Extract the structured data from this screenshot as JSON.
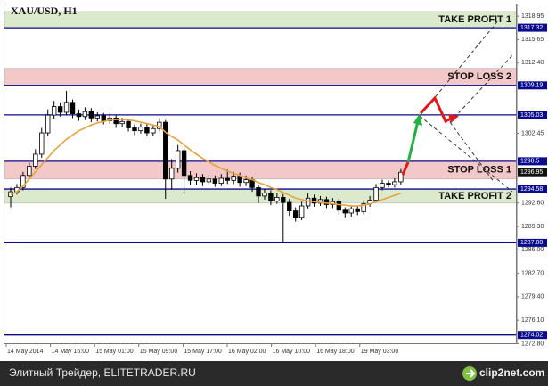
{
  "chart_data": {
    "type": "candlestick",
    "title": "XAU/USD, H1",
    "open": [
      1293.5,
      1294.2,
      1294.8,
      1296.5,
      1297.8,
      1299.5,
      1302.5,
      1305.0,
      1306.2,
      1305.4,
      1306.8,
      1305.2,
      1304.8,
      1305.5,
      1304.6,
      1304.9,
      1304.2,
      1304.6,
      1303.8,
      1304.1,
      1303.2,
      1302.8,
      1303.3,
      1302.5,
      1303.1,
      1304.0,
      1296.0,
      1297.5,
      1300.0,
      1296.5,
      1295.8,
      1296.2,
      1295.6,
      1296.0,
      1295.4,
      1296.1,
      1295.8,
      1296.4,
      1295.5,
      1295.9,
      1294.8,
      1293.6,
      1294.0,
      1292.9,
      1293.4,
      1292.7,
      1291.5,
      1290.6,
      1292.2,
      1293.3,
      1292.6,
      1293.1,
      1292.4,
      1292.8,
      1291.6,
      1291.2,
      1291.8,
      1291.4,
      1292.5,
      1293.0,
      1294.8,
      1295.4,
      1295.2,
      1295.6
    ],
    "high": [
      1294.8,
      1295.3,
      1297.0,
      1298.3,
      1300.2,
      1303.2,
      1305.8,
      1307.0,
      1306.8,
      1308.4,
      1307.2,
      1305.8,
      1306.1,
      1306.0,
      1305.4,
      1305.3,
      1305.2,
      1305.0,
      1304.6,
      1304.5,
      1303.7,
      1303.8,
      1303.7,
      1303.6,
      1304.6,
      1304.3,
      1298.8,
      1300.8,
      1300.4,
      1297.1,
      1296.8,
      1296.7,
      1296.6,
      1296.5,
      1296.7,
      1297.3,
      1297.0,
      1296.9,
      1296.5,
      1296.3,
      1295.2,
      1294.6,
      1294.4,
      1294.0,
      1293.9,
      1293.2,
      1292.0,
      1292.8,
      1294.0,
      1293.8,
      1293.6,
      1293.5,
      1293.3,
      1293.2,
      1292.0,
      1292.3,
      1292.2,
      1293.0,
      1293.6,
      1295.3,
      1295.9,
      1295.8,
      1296.1,
      1297.4
    ],
    "low": [
      1292.0,
      1293.8,
      1294.4,
      1296.0,
      1297.4,
      1299.0,
      1302.0,
      1304.5,
      1304.8,
      1305.0,
      1304.6,
      1304.2,
      1304.3,
      1304.0,
      1304.1,
      1303.7,
      1303.8,
      1303.2,
      1303.3,
      1302.7,
      1302.2,
      1302.4,
      1302.0,
      1302.1,
      1302.7,
      1293.2,
      1294.5,
      1296.9,
      1293.8,
      1295.2,
      1295.2,
      1295.0,
      1295.1,
      1294.9,
      1295.0,
      1295.3,
      1295.3,
      1294.9,
      1295.0,
      1294.2,
      1292.6,
      1293.1,
      1292.3,
      1292.5,
      1287.0,
      1290.8,
      1290.0,
      1290.2,
      1291.8,
      1292.1,
      1292.2,
      1291.9,
      1291.9,
      1291.0,
      1290.6,
      1290.7,
      1290.9,
      1291.0,
      1292.1,
      1292.7,
      1294.4,
      1294.8,
      1294.8,
      1295.2
    ],
    "close": [
      1294.2,
      1294.8,
      1296.5,
      1297.8,
      1299.5,
      1302.5,
      1305.0,
      1306.2,
      1305.4,
      1306.8,
      1305.2,
      1304.8,
      1305.5,
      1304.6,
      1304.9,
      1304.2,
      1304.6,
      1303.8,
      1304.1,
      1303.2,
      1302.8,
      1303.3,
      1302.5,
      1303.1,
      1304.0,
      1296.0,
      1297.5,
      1300.0,
      1296.5,
      1295.8,
      1296.2,
      1295.6,
      1296.0,
      1295.4,
      1296.1,
      1295.8,
      1296.4,
      1295.5,
      1295.9,
      1294.8,
      1293.6,
      1294.0,
      1292.9,
      1293.4,
      1292.7,
      1291.5,
      1290.6,
      1292.2,
      1293.3,
      1292.6,
      1293.1,
      1292.4,
      1292.8,
      1291.6,
      1291.2,
      1291.8,
      1291.4,
      1292.5,
      1293.0,
      1294.8,
      1295.4,
      1295.2,
      1295.6,
      1296.95
    ],
    "moving_average": {
      "color": "#e8a23a",
      "values": [
        1293.8,
        1294.2,
        1295.0,
        1296.0,
        1297.0,
        1298.0,
        1299.0,
        1300.0,
        1300.8,
        1301.6,
        1302.2,
        1302.8,
        1303.2,
        1303.6,
        1303.9,
        1304.1,
        1304.3,
        1304.4,
        1304.4,
        1304.3,
        1304.2,
        1304.0,
        1303.8,
        1303.6,
        1303.4,
        1302.6,
        1302.0,
        1301.5,
        1300.8,
        1300.1,
        1299.5,
        1298.9,
        1298.4,
        1297.9,
        1297.5,
        1297.1,
        1296.8,
        1296.5,
        1296.2,
        1295.9,
        1295.5,
        1295.2,
        1294.8,
        1294.5,
        1294.1,
        1293.7,
        1293.3,
        1293.1,
        1292.9,
        1292.8,
        1292.7,
        1292.6,
        1292.5,
        1292.4,
        1292.3,
        1292.2,
        1292.2,
        1292.3,
        1292.5,
        1292.8,
        1293.1,
        1293.4,
        1293.7,
        1294.0
      ]
    },
    "time_labels": [
      "14 May 2014",
      "14 May 16:00",
      "15 May 01:00",
      "15 May 09:00",
      "15 May 17:00",
      "16 May 02:00",
      "16 May 10:00",
      "16 May 18:00",
      "19 May 03:00"
    ],
    "ylim": [
      1272.6,
      1320.6
    ],
    "yticks": [
      1318.95,
      1315.65,
      {
        "value": 1312.4,
        "label": "1312.40"
      },
      1302.45,
      {
        "value": 1292.6,
        "label": "1292.60"
      },
      {
        "value": 1289.3,
        "label": "1289.30"
      },
      {
        "value": 1286,
        "label": "1286.00"
      },
      {
        "value": 1282.7,
        "label": "1282.70"
      },
      {
        "value": 1279.4,
        "label": "1279.40"
      },
      {
        "value": 1276.1,
        "label": "1276.10"
      },
      {
        "value": 1272.8,
        "label": "1272.80"
      }
    ],
    "levels": [
      1317.32,
      1309.19,
      1305.03,
      1298.5,
      1294.58,
      {
        "value": 1287,
        "label": "1287.00"
      },
      1274.02
    ],
    "level_color": "#0a0a8c",
    "zones": [
      {
        "label": "TAKE PROFIT 1",
        "range": [
          1317.32,
          1319.6
        ],
        "color": "#dbe9cc"
      },
      {
        "label": "STOP LOSS 2",
        "range": [
          1309.19,
          1311.6
        ],
        "color": "#f2c8c8"
      },
      {
        "label": "STOP LOSS 1",
        "range": [
          1296.0,
          1298.5
        ],
        "color": "#f2c8c8"
      },
      {
        "label": "TAKE PROFIT 2",
        "range": [
          1292.6,
          1294.58
        ],
        "color": "#dbe9cc"
      }
    ]
  },
  "footer": {
    "source": "Элитный Трейдер, ELITETRADER.RU",
    "watermark": "clip2net.com"
  }
}
